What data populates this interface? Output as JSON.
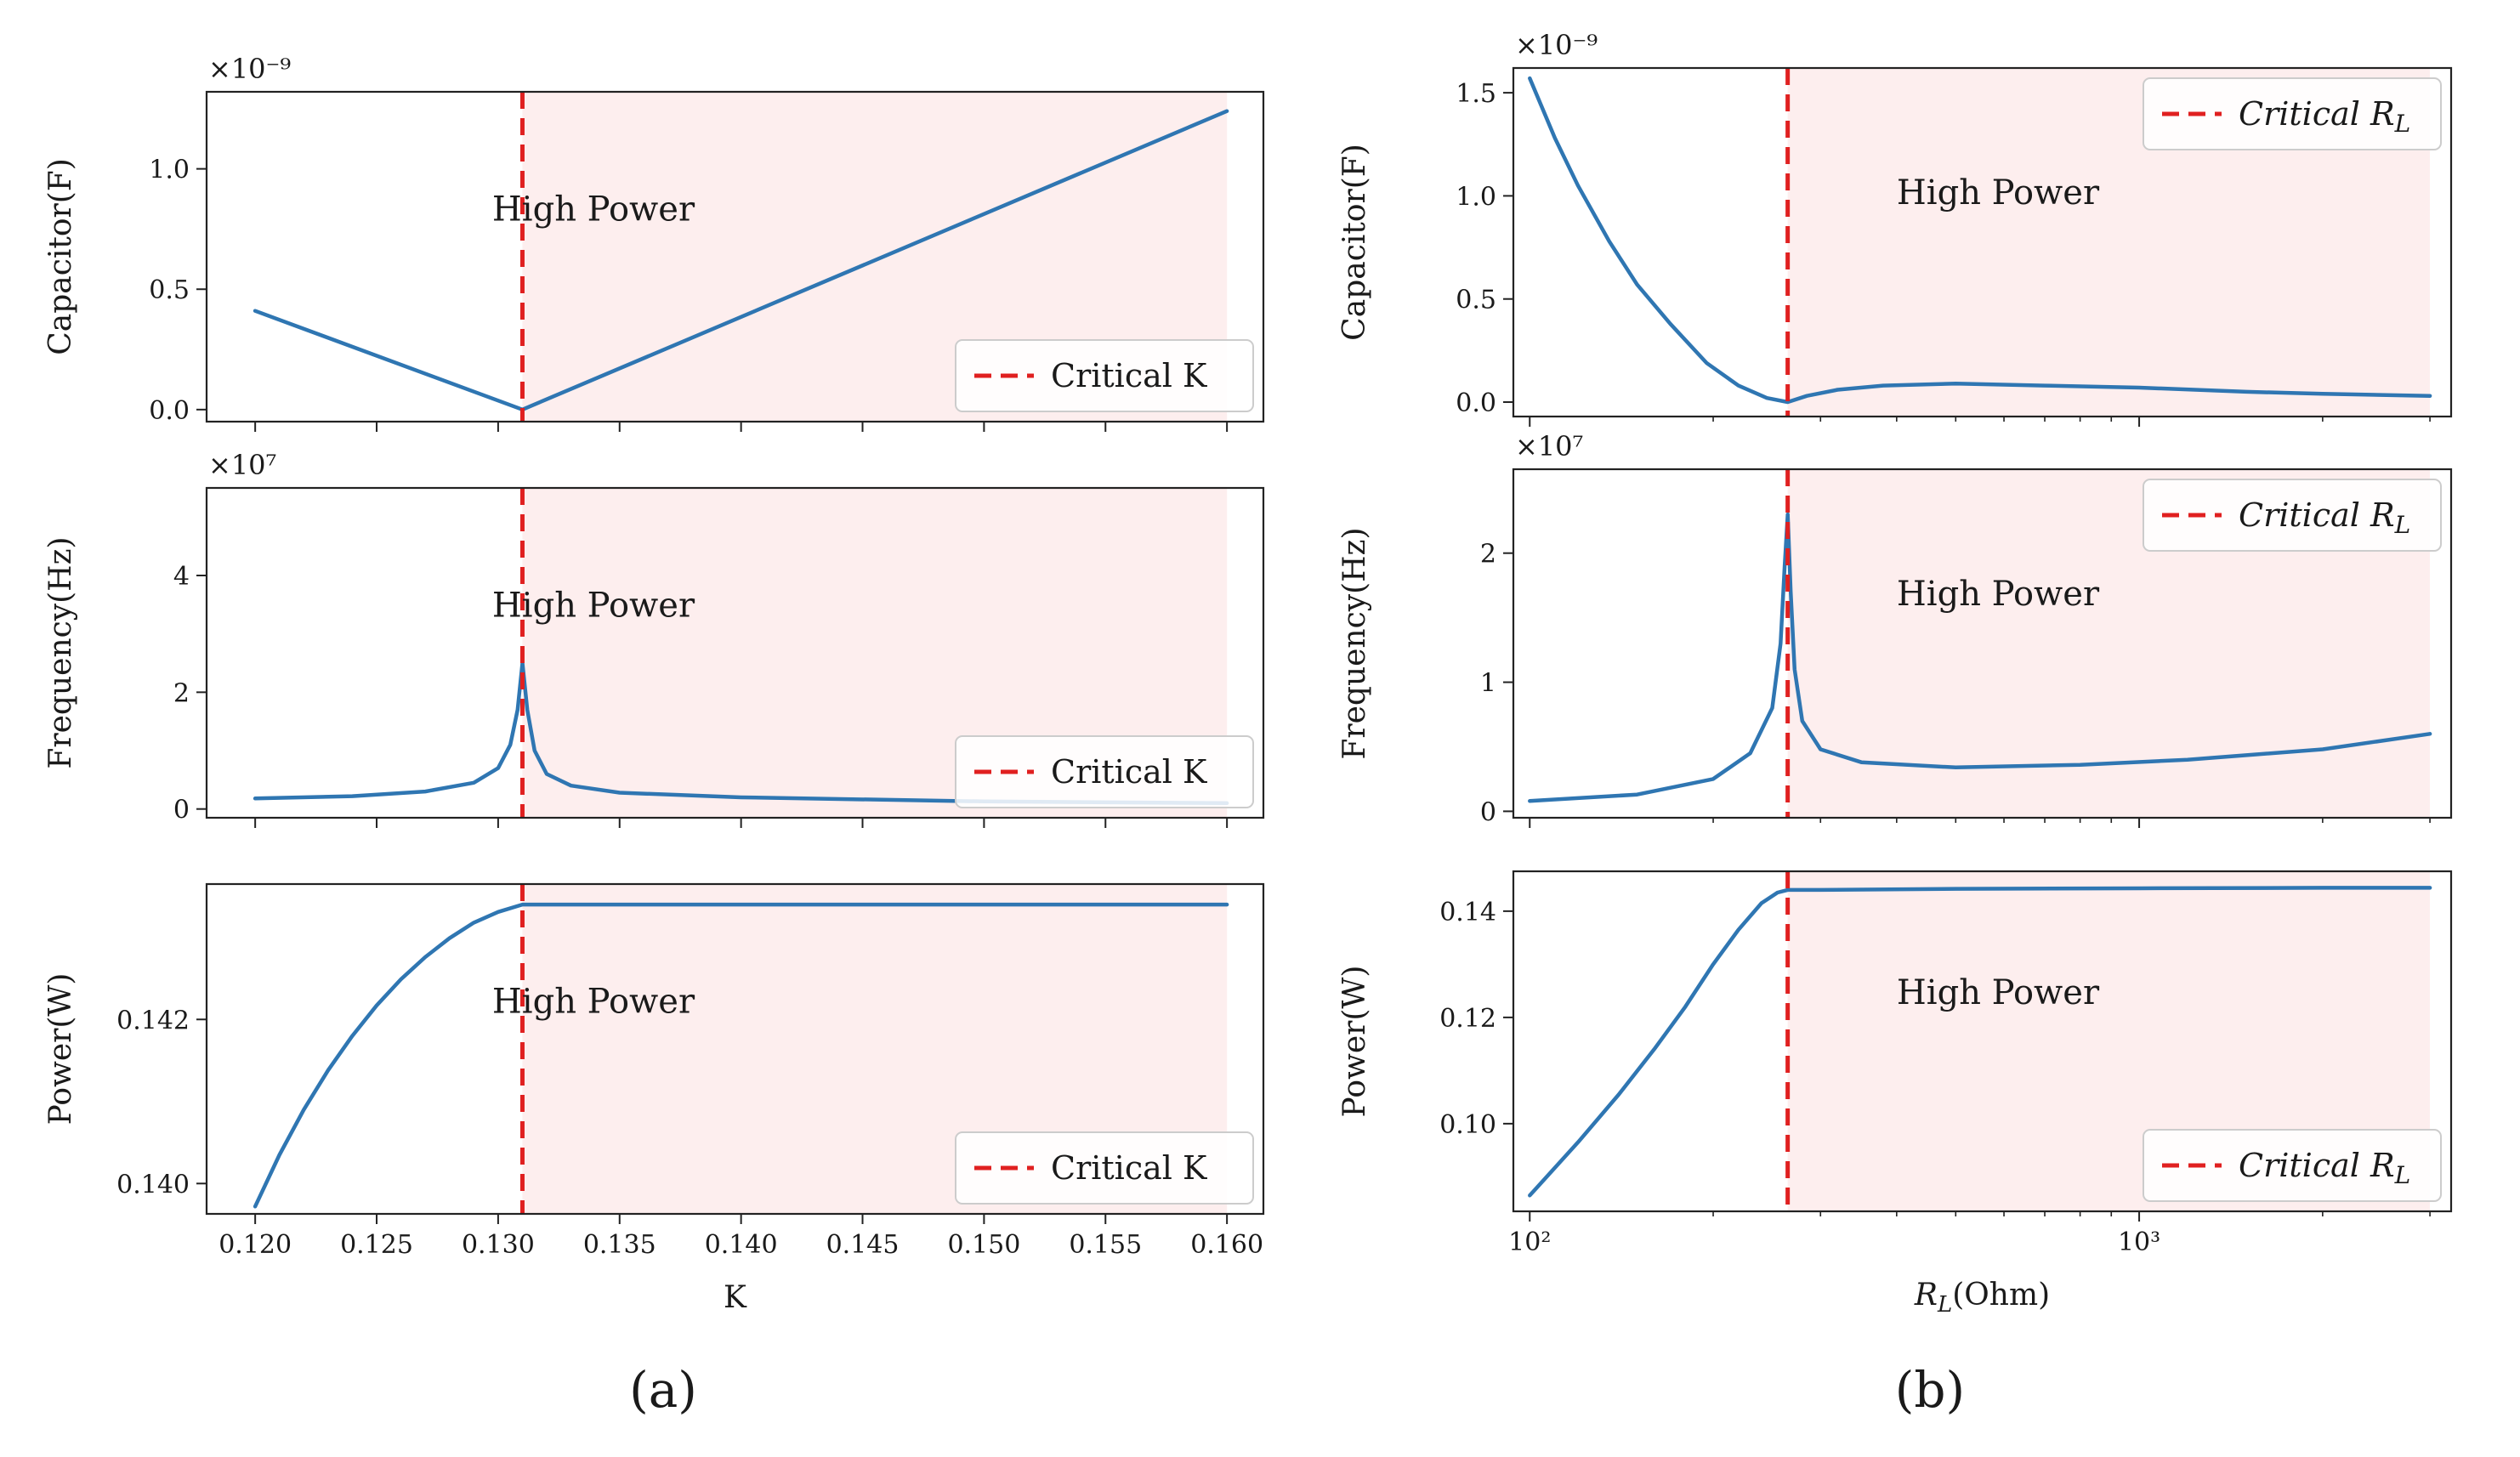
{
  "figure": {
    "captions": {
      "a": "(a)",
      "b": "(b)"
    }
  },
  "colors": {
    "curve": "#2f76b2",
    "critical": "#e02020",
    "shade": "#fdeeee",
    "axis": "#222222"
  },
  "chart_data": [
    {
      "id": "a1",
      "type": "line",
      "panel": "a",
      "ylabel": "Capacitor(F)",
      "multiplier": "×10⁻⁹",
      "xscale": "linear",
      "xlim": [
        0.118,
        0.1615
      ],
      "ylim": [
        -0.05,
        1.32
      ],
      "xticks": [
        0.12,
        0.125,
        0.13,
        0.135,
        0.14,
        0.145,
        0.15,
        0.155,
        0.16
      ],
      "yticks": [
        0.0,
        0.5,
        1.0
      ],
      "ytick_labels": [
        "0.0",
        "0.5",
        "1.0"
      ],
      "critical_x": 0.131,
      "shade_from": 0.131,
      "shade_to": 0.16,
      "region_label": "High Power",
      "legend": "Critical K",
      "series": [
        {
          "name": "Capacitor",
          "x": [
            0.12,
            0.131,
            0.16
          ],
          "y": [
            0.41,
            0.0,
            1.24
          ]
        }
      ]
    },
    {
      "id": "a2",
      "type": "line",
      "panel": "a",
      "ylabel": "Frequency(Hz)",
      "multiplier": "×10⁷",
      "xscale": "linear",
      "xlim": [
        0.118,
        0.1615
      ],
      "ylim": [
        -0.15,
        5.5
      ],
      "xticks": [
        0.12,
        0.125,
        0.13,
        0.135,
        0.14,
        0.145,
        0.15,
        0.155,
        0.16
      ],
      "yticks": [
        0,
        2,
        4
      ],
      "ytick_labels": [
        "0",
        "2",
        "4"
      ],
      "critical_x": 0.131,
      "shade_from": 0.131,
      "shade_to": 0.16,
      "region_label": "High Power",
      "legend": "Critical K",
      "series": [
        {
          "name": "Frequency",
          "x": [
            0.12,
            0.124,
            0.127,
            0.129,
            0.13,
            0.1305,
            0.1308,
            0.131,
            0.1312,
            0.1315,
            0.132,
            0.133,
            0.135,
            0.14,
            0.15,
            0.16
          ],
          "y": [
            0.18,
            0.22,
            0.3,
            0.45,
            0.7,
            1.1,
            1.7,
            2.5,
            1.7,
            1.0,
            0.6,
            0.4,
            0.28,
            0.2,
            0.13,
            0.1
          ]
        }
      ]
    },
    {
      "id": "a3",
      "type": "line",
      "panel": "a",
      "ylabel": "Power(W)",
      "multiplier": "",
      "xlabel": "K",
      "xscale": "linear",
      "xlim": [
        0.118,
        0.1615
      ],
      "ylim": [
        0.13963,
        0.14365
      ],
      "xticks": [
        0.12,
        0.125,
        0.13,
        0.135,
        0.14,
        0.145,
        0.15,
        0.155,
        0.16
      ],
      "xtick_labels": [
        "0.120",
        "0.125",
        "0.130",
        "0.135",
        "0.140",
        "0.145",
        "0.150",
        "0.155",
        "0.160"
      ],
      "yticks": [
        0.14,
        0.142
      ],
      "ytick_labels": [
        "0.140",
        "0.142"
      ],
      "critical_x": 0.131,
      "shade_from": 0.131,
      "shade_to": 0.16,
      "region_label": "High Power",
      "legend": "Critical K",
      "series": [
        {
          "name": "Power",
          "x": [
            0.12,
            0.121,
            0.122,
            0.123,
            0.124,
            0.125,
            0.126,
            0.127,
            0.128,
            0.129,
            0.13,
            0.131,
            0.14,
            0.15,
            0.16
          ],
          "y": [
            0.13972,
            0.14035,
            0.1409,
            0.14138,
            0.1418,
            0.14217,
            0.14249,
            0.14276,
            0.14299,
            0.14318,
            0.14331,
            0.1434,
            0.1434,
            0.1434,
            0.1434
          ]
        }
      ]
    },
    {
      "id": "b1",
      "type": "line",
      "panel": "b",
      "ylabel": "Capacitor(F)",
      "multiplier": "×10⁻⁹",
      "xscale": "log",
      "xlim": [
        94,
        3250
      ],
      "ylim": [
        -0.07,
        1.62
      ],
      "xticks": [
        100,
        1000
      ],
      "yticks": [
        0.0,
        0.5,
        1.0,
        1.5
      ],
      "ytick_labels": [
        "0.0",
        "0.5",
        "1.0",
        "1.5"
      ],
      "critical_x": 265,
      "shade_from": 265,
      "shade_to": 3000,
      "region_label": "High Power",
      "legend": "Critical R_L",
      "series": [
        {
          "name": "Capacitor",
          "x": [
            100,
            110,
            120,
            135,
            150,
            170,
            195,
            220,
            245,
            265,
            285,
            320,
            380,
            500,
            700,
            1000,
            1500,
            2000,
            3000
          ],
          "y": [
            1.57,
            1.28,
            1.05,
            0.78,
            0.57,
            0.38,
            0.19,
            0.08,
            0.02,
            0.0,
            0.03,
            0.06,
            0.08,
            0.09,
            0.08,
            0.07,
            0.05,
            0.04,
            0.03
          ]
        }
      ]
    },
    {
      "id": "b2",
      "type": "line",
      "panel": "b",
      "ylabel": "Frequency(Hz)",
      "multiplier": "×10⁷",
      "xscale": "log",
      "xlim": [
        94,
        3250
      ],
      "ylim": [
        -0.05,
        2.65
      ],
      "xticks": [
        100,
        1000
      ],
      "yticks": [
        0,
        1,
        2
      ],
      "ytick_labels": [
        "0",
        "1",
        "2"
      ],
      "critical_x": 265,
      "shade_from": 265,
      "shade_to": 3000,
      "region_label": "High Power",
      "legend": "Critical R_L",
      "series": [
        {
          "name": "Frequency",
          "x": [
            100,
            150,
            200,
            230,
            250,
            258,
            262,
            265,
            268,
            272,
            280,
            300,
            350,
            500,
            800,
            1200,
            2000,
            3000
          ],
          "y": [
            0.08,
            0.13,
            0.25,
            0.45,
            0.8,
            1.3,
            1.9,
            2.3,
            1.7,
            1.1,
            0.7,
            0.48,
            0.38,
            0.34,
            0.36,
            0.4,
            0.48,
            0.6
          ]
        }
      ]
    },
    {
      "id": "b3",
      "type": "line",
      "panel": "b",
      "ylabel": "Power(W)",
      "multiplier": "",
      "xlabel": "R_L(Ohm)",
      "xscale": "log",
      "xlim": [
        94,
        3250
      ],
      "ylim": [
        0.0835,
        0.1475
      ],
      "xticks": [
        100,
        1000
      ],
      "xtick_labels": [
        "10²",
        "10³"
      ],
      "yticks": [
        0.1,
        0.12,
        0.14
      ],
      "ytick_labels": [
        "0.10",
        "0.12",
        "0.14"
      ],
      "critical_x": 265,
      "shade_from": 265,
      "shade_to": 3000,
      "region_label": "High Power",
      "legend": "Critical R_L",
      "series": [
        {
          "name": "Power",
          "x": [
            100,
            120,
            140,
            160,
            180,
            200,
            220,
            240,
            255,
            265,
            300,
            500,
            1000,
            2000,
            3000
          ],
          "y": [
            0.0865,
            0.0965,
            0.1055,
            0.114,
            0.122,
            0.13,
            0.1365,
            0.1415,
            0.1435,
            0.144,
            0.144,
            0.1442,
            0.1443,
            0.1444,
            0.1444
          ]
        }
      ]
    }
  ]
}
